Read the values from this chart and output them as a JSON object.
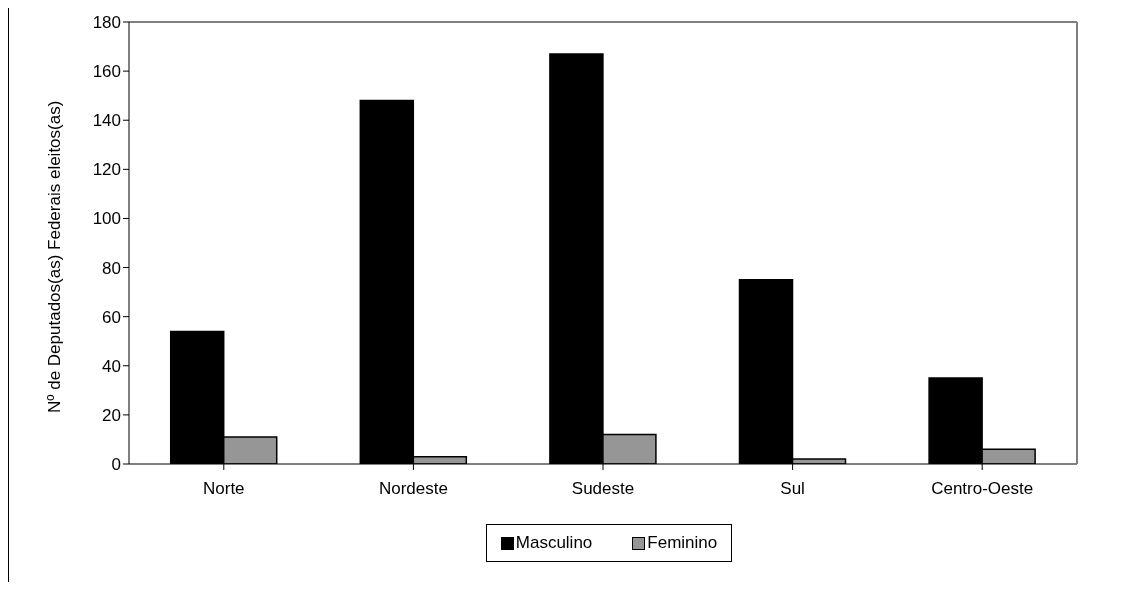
{
  "chart_data": {
    "type": "bar",
    "ylabel": "Nº de Deputados(as) Federais eleitos(as)",
    "categories": [
      "Norte",
      "Nordeste",
      "Sudeste",
      "Sul",
      "Centro-Oeste"
    ],
    "series": [
      {
        "name": "Masculino",
        "color": "#000000",
        "values": [
          54,
          148,
          167,
          75,
          35
        ]
      },
      {
        "name": "Feminino",
        "color": "#969696",
        "values": [
          11,
          3,
          12,
          2,
          6
        ]
      }
    ],
    "ylim": [
      0,
      180
    ],
    "yticks": [
      0,
      20,
      40,
      60,
      80,
      100,
      120,
      140,
      160,
      180
    ],
    "grid": false,
    "legend": "bottom"
  }
}
